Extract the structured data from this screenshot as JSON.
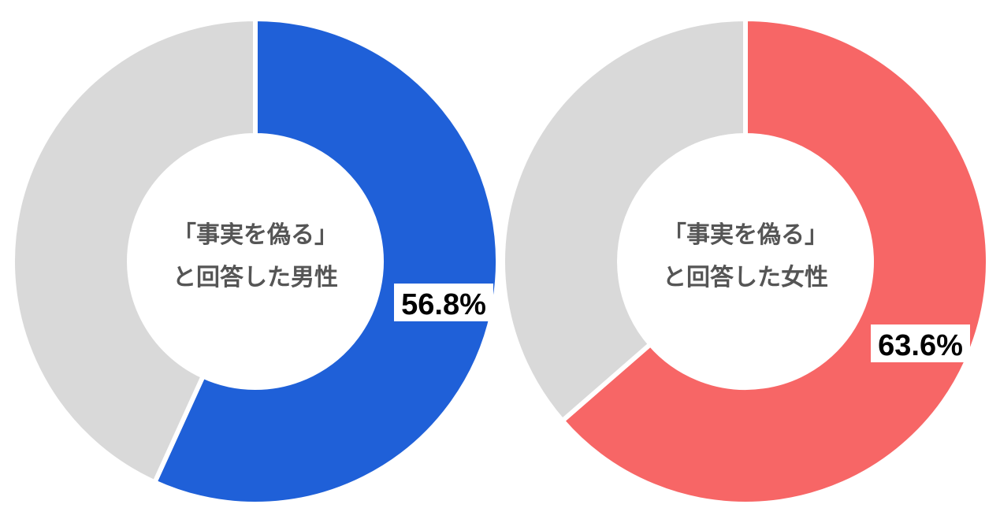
{
  "chart_data": [
    {
      "type": "donut",
      "center_label_line1": "「事実を偽る」",
      "center_label_line2": "と回答した男性",
      "values": [
        56.8,
        43.2
      ],
      "value_label": "56.8%",
      "colors": [
        "#1f60d8",
        "#d9d9d9"
      ]
    },
    {
      "type": "donut",
      "center_label_line1": "「事実を偽る」",
      "center_label_line2": "と回答した女性",
      "values": [
        63.6,
        36.4
      ],
      "value_label": "63.6%",
      "colors": [
        "#f76666",
        "#d9d9d9"
      ]
    }
  ]
}
